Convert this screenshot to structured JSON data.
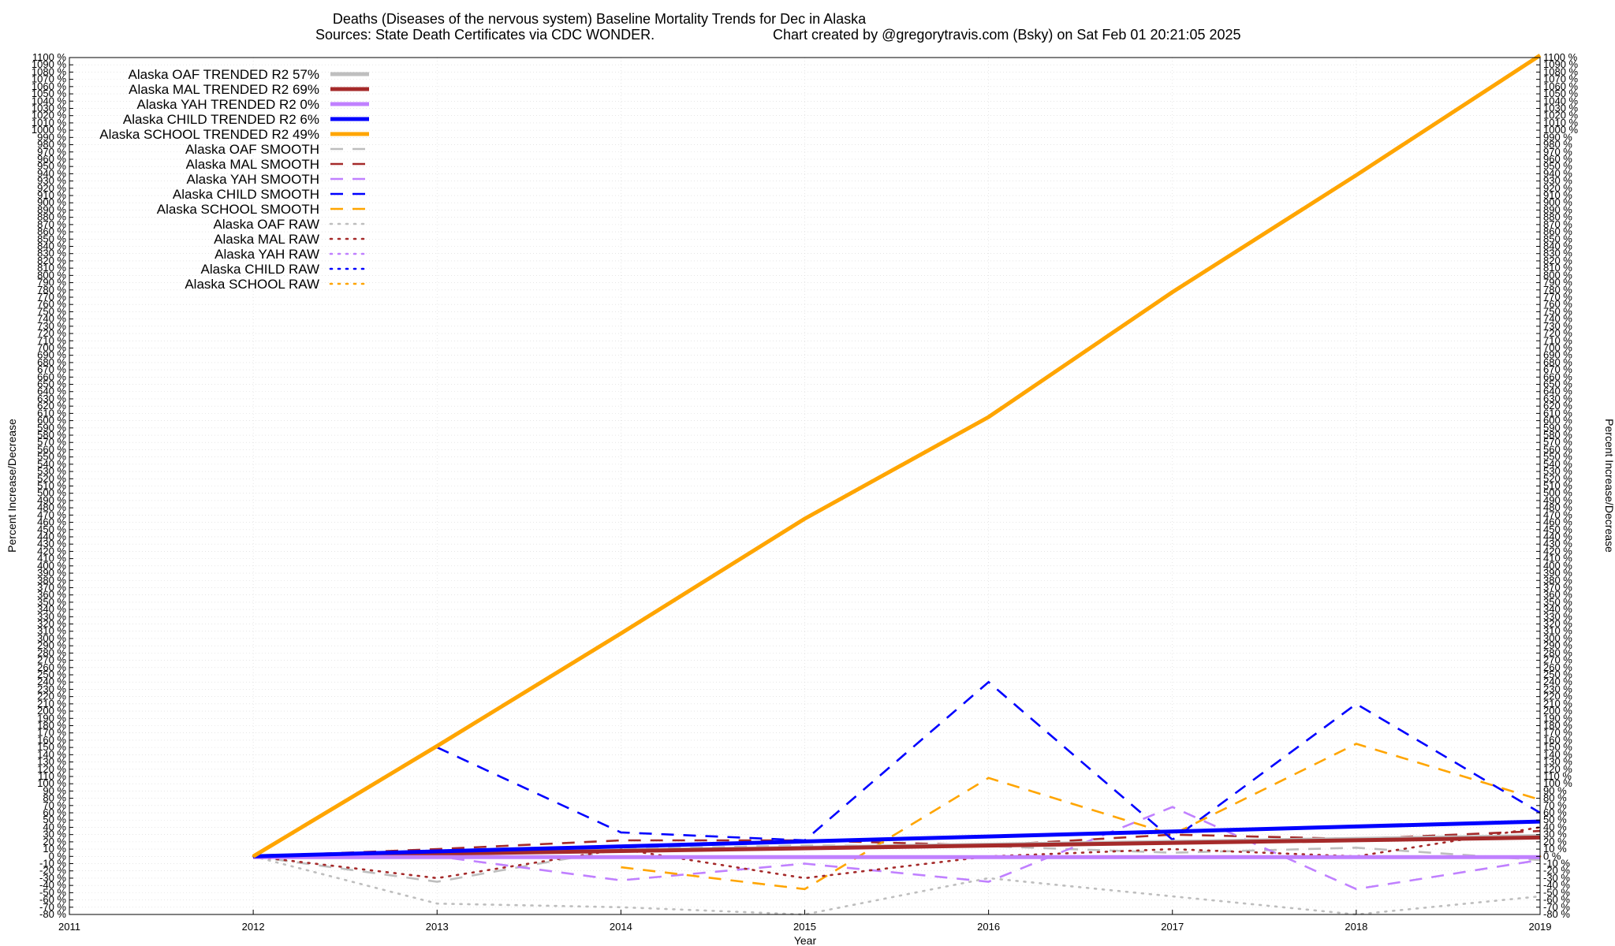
{
  "chart_data": {
    "type": "line",
    "title": "Deaths (Diseases of the nervous system)  Baseline Mortality Trends for Dec in Alaska",
    "subtitle_left": "Sources: State Death Certificates via CDC WONDER.",
    "subtitle_right": "Chart created by @gregorytravis.com (Bsky) on Sat Feb 01 20:21:05 2025",
    "xlabel": "Year",
    "ylabel": "Percent Increase/Decrease",
    "xlim": [
      2011,
      2019
    ],
    "ylim": [
      -80,
      1100
    ],
    "ytick_step": 10,
    "ytick_suffix": " %",
    "grid": true,
    "legend_position": "top-left",
    "series": [
      {
        "name": "Alaska OAF TRENDED R2  57%",
        "style": "trend",
        "color": "#bebebe",
        "x": [
          2012,
          2019
        ],
        "values": [
          0,
          28
        ]
      },
      {
        "name": "Alaska MAL TRENDED R2  69%",
        "style": "trend",
        "color": "#a52a2a",
        "x": [
          2012,
          2019
        ],
        "values": [
          0,
          26
        ]
      },
      {
        "name": "Alaska YAH TRENDED R2   0%",
        "style": "trend",
        "color": "#c080ff",
        "x": [
          2012,
          2019
        ],
        "values": [
          -1,
          -1
        ]
      },
      {
        "name": "Alaska CHILD TRENDED R2   6%",
        "style": "trend",
        "color": "#0000ff",
        "x": [
          2012,
          2019
        ],
        "values": [
          0,
          48
        ]
      },
      {
        "name": "Alaska SCHOOL TRENDED R2  49%",
        "style": "trend",
        "color": "#ffa500",
        "x": [
          2012,
          2013,
          2014,
          2015,
          2016,
          2017,
          2018,
          2019
        ],
        "values": [
          0,
          152,
          307,
          465,
          605,
          777,
          938,
          1103
        ]
      },
      {
        "name": "Alaska OAF SMOOTH",
        "style": "smooth",
        "color": "#bebebe",
        "x": [
          2012,
          2013,
          2014,
          2015,
          2016,
          2017,
          2018,
          2019
        ],
        "values": [
          0,
          -35,
          10,
          15,
          14,
          5,
          12,
          -5
        ]
      },
      {
        "name": "Alaska MAL SMOOTH",
        "style": "smooth",
        "color": "#a52a2a",
        "x": [
          2012,
          2013,
          2014,
          2015,
          2016,
          2017,
          2018,
          2019
        ],
        "values": [
          0,
          10,
          22,
          22,
          15,
          30,
          24,
          35
        ]
      },
      {
        "name": "Alaska YAH SMOOTH",
        "style": "smooth",
        "color": "#c080ff",
        "x": [
          2012,
          2013,
          2014,
          2015,
          2016,
          2017,
          2018,
          2019
        ],
        "values": [
          0,
          0,
          -33,
          -10,
          -35,
          68,
          -45,
          -5
        ]
      },
      {
        "name": "Alaska CHILD SMOOTH",
        "style": "smooth",
        "color": "#0000ff",
        "x": [
          2013,
          2014,
          2015,
          2016,
          2017,
          2018,
          2019
        ],
        "values": [
          150,
          33,
          22,
          240,
          23,
          210,
          60
        ]
      },
      {
        "name": "Alaska SCHOOL SMOOTH",
        "style": "smooth",
        "color": "#ffa500",
        "x": [
          2014,
          2015,
          2016,
          2017,
          2018,
          2019
        ],
        "values": [
          -15,
          -45,
          108,
          30,
          155,
          78
        ]
      },
      {
        "name": "Alaska OAF RAW",
        "style": "raw",
        "color": "#bebebe",
        "x": [
          2012,
          2013,
          2014,
          2015,
          2016,
          2017,
          2018,
          2019
        ],
        "values": [
          0,
          -65,
          -70,
          -80,
          -30,
          -55,
          -80,
          -55
        ]
      },
      {
        "name": "Alaska MAL RAW",
        "style": "raw",
        "color": "#a52a2a",
        "x": [
          2012,
          2013,
          2014,
          2015,
          2016,
          2017,
          2018,
          2019
        ],
        "values": [
          0,
          -30,
          10,
          -30,
          0,
          10,
          0,
          40
        ]
      },
      {
        "name": "Alaska YAH RAW",
        "style": "raw",
        "color": "#c080ff",
        "x": [
          2012,
          2019
        ],
        "values": [
          0,
          0
        ]
      },
      {
        "name": "Alaska CHILD RAW",
        "style": "raw",
        "color": "#0000ff",
        "x": [
          2012,
          2019
        ],
        "values": [
          0,
          0
        ]
      },
      {
        "name": "Alaska SCHOOL RAW",
        "style": "raw",
        "color": "#ffa500",
        "x": [
          2012,
          2019
        ],
        "values": [
          0,
          0
        ]
      }
    ]
  }
}
